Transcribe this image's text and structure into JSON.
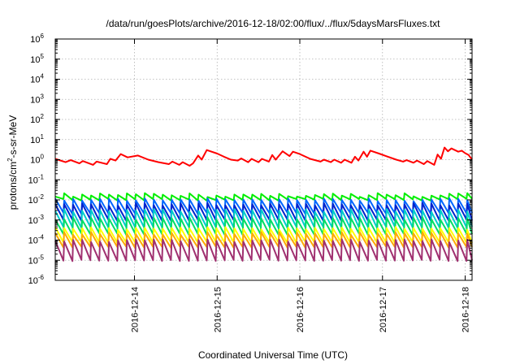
{
  "chart_data": {
    "type": "line",
    "title": "/data/run/goesPlots/archive/2016-12-18/02:00/flux/../flux/5daysMarsFluxes.txt",
    "xlabel": "Coordinated Universal Time (UTC)",
    "ylabel_parts": [
      "protons/cm",
      "2",
      "-s-sr-MeV"
    ],
    "yscale": "log",
    "ylim": [
      1e-06,
      1000000.0
    ],
    "y_tick_exponents": [
      -6,
      -5,
      -4,
      -3,
      -2,
      -1,
      0,
      1,
      2,
      3,
      4,
      5,
      6
    ],
    "y_tick_base": "10",
    "xlim": [
      "2016-12-13T01:00",
      "2016-12-18T02:00"
    ],
    "x_ticks": [
      "2016-12-14",
      "2016-12-15",
      "2016-12-16",
      "2016-12-17",
      "2016-12-18"
    ],
    "grid": true,
    "series": [
      {
        "color": "#ff0000",
        "sawtooth": false,
        "values": [
          {
            "t": "2016-12-13T01:00",
            "y": 1.1
          },
          {
            "t": "2016-12-13T04:00",
            "y": 0.75
          },
          {
            "t": "2016-12-13T05:30",
            "y": 0.95
          },
          {
            "t": "2016-12-13T08:00",
            "y": 0.65
          },
          {
            "t": "2016-12-13T09:00",
            "y": 0.85
          },
          {
            "t": "2016-12-13T12:00",
            "y": 0.55
          },
          {
            "t": "2016-12-13T13:00",
            "y": 0.8
          },
          {
            "t": "2016-12-13T16:00",
            "y": 0.6
          },
          {
            "t": "2016-12-13T17:00",
            "y": 1.1
          },
          {
            "t": "2016-12-13T18:30",
            "y": 0.9
          },
          {
            "t": "2016-12-13T20:00",
            "y": 1.9
          },
          {
            "t": "2016-12-13T22:00",
            "y": 1.3
          },
          {
            "t": "2016-12-14T01:00",
            "y": 1.6
          },
          {
            "t": "2016-12-14T04:00",
            "y": 1.0
          },
          {
            "t": "2016-12-14T07:00",
            "y": 0.75
          },
          {
            "t": "2016-12-14T10:00",
            "y": 0.6
          },
          {
            "t": "2016-12-14T11:00",
            "y": 0.8
          },
          {
            "t": "2016-12-14T13:00",
            "y": 0.55
          },
          {
            "t": "2016-12-14T14:00",
            "y": 0.75
          },
          {
            "t": "2016-12-14T16:00",
            "y": 0.5
          },
          {
            "t": "2016-12-14T17:00",
            "y": 0.65
          },
          {
            "t": "2016-12-14T18:30",
            "y": 1.6
          },
          {
            "t": "2016-12-14T19:30",
            "y": 1.0
          },
          {
            "t": "2016-12-14T21:00",
            "y": 3.0
          },
          {
            "t": "2016-12-15T00:00",
            "y": 2.0
          },
          {
            "t": "2016-12-15T02:00",
            "y": 1.4
          },
          {
            "t": "2016-12-15T04:00",
            "y": 1.0
          },
          {
            "t": "2016-12-15T06:00",
            "y": 0.9
          },
          {
            "t": "2016-12-15T07:00",
            "y": 1.15
          },
          {
            "t": "2016-12-15T09:00",
            "y": 0.75
          },
          {
            "t": "2016-12-15T10:00",
            "y": 1.1
          },
          {
            "t": "2016-12-15T12:00",
            "y": 0.75
          },
          {
            "t": "2016-12-15T13:00",
            "y": 1.1
          },
          {
            "t": "2016-12-15T15:00",
            "y": 0.8
          },
          {
            "t": "2016-12-15T16:00",
            "y": 1.7
          },
          {
            "t": "2016-12-15T17:00",
            "y": 1.0
          },
          {
            "t": "2016-12-15T19:00",
            "y": 2.6
          },
          {
            "t": "2016-12-15T21:00",
            "y": 1.5
          },
          {
            "t": "2016-12-15T22:00",
            "y": 2.5
          },
          {
            "t": "2016-12-16T00:00",
            "y": 1.9
          },
          {
            "t": "2016-12-16T03:00",
            "y": 1.1
          },
          {
            "t": "2016-12-16T06:00",
            "y": 0.8
          },
          {
            "t": "2016-12-16T07:00",
            "y": 1.0
          },
          {
            "t": "2016-12-16T09:00",
            "y": 0.75
          },
          {
            "t": "2016-12-16T10:00",
            "y": 1.0
          },
          {
            "t": "2016-12-16T12:00",
            "y": 0.7
          },
          {
            "t": "2016-12-16T13:00",
            "y": 1.0
          },
          {
            "t": "2016-12-16T15:00",
            "y": 0.7
          },
          {
            "t": "2016-12-16T16:00",
            "y": 1.4
          },
          {
            "t": "2016-12-16T17:00",
            "y": 0.9
          },
          {
            "t": "2016-12-16T18:30",
            "y": 2.5
          },
          {
            "t": "2016-12-16T19:30",
            "y": 1.4
          },
          {
            "t": "2016-12-16T20:30",
            "y": 2.8
          },
          {
            "t": "2016-12-16T23:00",
            "y": 2.0
          },
          {
            "t": "2016-12-17T01:00",
            "y": 1.5
          },
          {
            "t": "2016-12-17T04:00",
            "y": 1.0
          },
          {
            "t": "2016-12-17T06:00",
            "y": 0.8
          },
          {
            "t": "2016-12-17T07:00",
            "y": 0.95
          },
          {
            "t": "2016-12-17T09:00",
            "y": 0.7
          },
          {
            "t": "2016-12-17T10:00",
            "y": 0.9
          },
          {
            "t": "2016-12-17T12:00",
            "y": 0.6
          },
          {
            "t": "2016-12-17T13:00",
            "y": 0.85
          },
          {
            "t": "2016-12-17T15:00",
            "y": 0.55
          },
          {
            "t": "2016-12-17T16:00",
            "y": 1.8
          },
          {
            "t": "2016-12-17T17:00",
            "y": 1.1
          },
          {
            "t": "2016-12-17T18:00",
            "y": 4.0
          },
          {
            "t": "2016-12-17T19:00",
            "y": 2.6
          },
          {
            "t": "2016-12-17T20:00",
            "y": 3.6
          },
          {
            "t": "2016-12-17T22:00",
            "y": 2.5
          },
          {
            "t": "2016-12-17T23:00",
            "y": 2.8
          },
          {
            "t": "2016-12-18T00:00",
            "y": 2.1
          },
          {
            "t": "2016-12-18T01:00",
            "y": 1.7
          },
          {
            "t": "2016-12-18T02:00",
            "y": 1.0
          }
        ]
      },
      {
        "color": "#00ee00",
        "sawtooth": true,
        "low": 0.009,
        "high": 0.022,
        "period_hours": 2.6,
        "noise": 0.2
      },
      {
        "color": "#0066ff",
        "sawtooth": true,
        "low": 0.002,
        "high": 0.012,
        "period_hours": 2.6,
        "noise": 0.15
      },
      {
        "color": "#0022cc",
        "sawtooth": true,
        "low": 0.0009,
        "high": 0.007,
        "period_hours": 2.6,
        "noise": 0.15
      },
      {
        "color": "#00cccc",
        "sawtooth": true,
        "low": 0.0004,
        "high": 0.0035,
        "period_hours": 2.6,
        "noise": 0.15
      },
      {
        "color": "#00dd66",
        "sawtooth": true,
        "low": 0.00018,
        "high": 0.0014,
        "period_hours": 2.6,
        "noise": 0.15
      },
      {
        "color": "#ffff00",
        "sawtooth": true,
        "low": 7e-05,
        "high": 0.00045,
        "period_hours": 2.6,
        "noise": 0.15
      },
      {
        "color": "#ffaa00",
        "sawtooth": true,
        "low": 4e-05,
        "high": 0.00025,
        "period_hours": 2.6,
        "noise": 0.15
      },
      {
        "color": "#a03070",
        "sawtooth": true,
        "low": 9e-06,
        "high": 0.00011,
        "period_hours": 2.6,
        "noise": 0.15
      }
    ]
  }
}
